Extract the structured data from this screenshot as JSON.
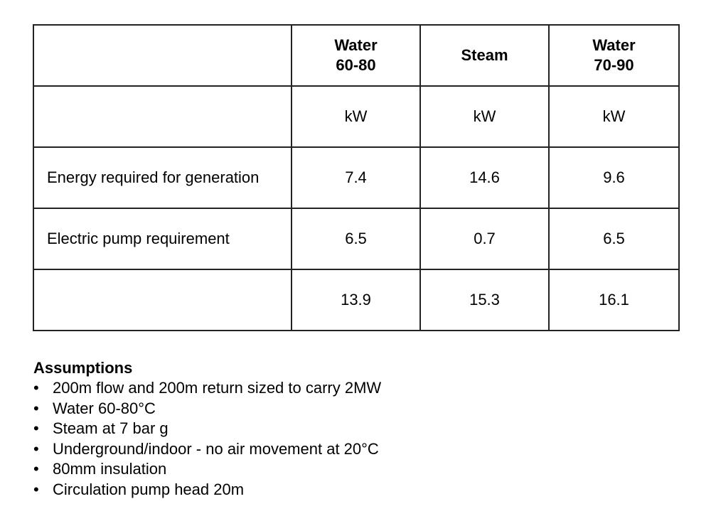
{
  "table": {
    "header": [
      "",
      [
        "Water",
        "60-80"
      ],
      [
        "Steam"
      ],
      [
        "Water",
        "70-90"
      ]
    ],
    "rows": [
      [
        "",
        "kW",
        "kW",
        "kW"
      ],
      [
        "Energy required for generation",
        "7.4",
        "14.6",
        "9.6"
      ],
      [
        "Electric pump requirement",
        "6.5",
        "0.7",
        "6.5"
      ],
      [
        "",
        "13.9",
        "15.3",
        "16.1"
      ]
    ]
  },
  "assumptions": {
    "title": "Assumptions",
    "bullet": "•",
    "items": [
      "200m flow and 200m return sized to carry 2MW",
      "Water 60-80°C",
      "Steam at 7 bar g",
      "Underground/indoor - no air movement at 20°C",
      "80mm insulation",
      "Circulation pump head 20m"
    ]
  }
}
